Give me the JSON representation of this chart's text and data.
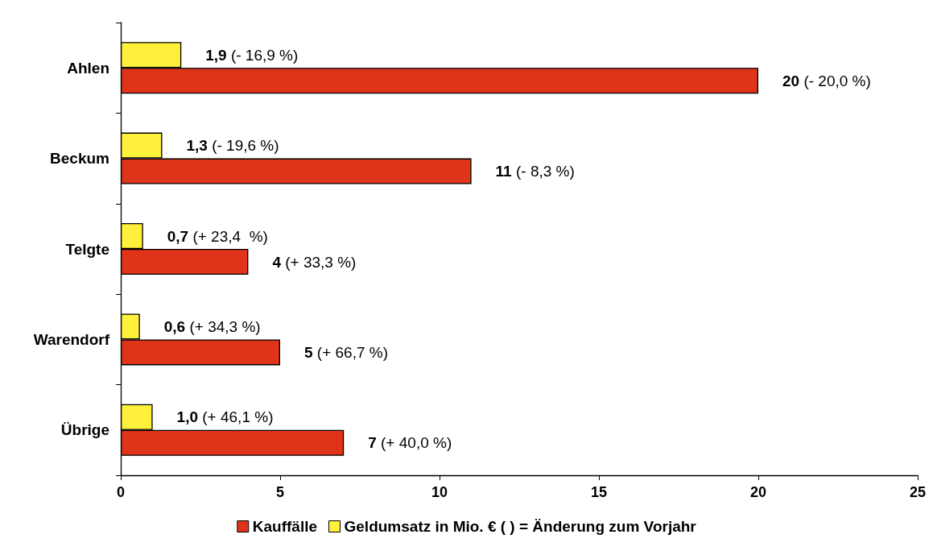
{
  "chart_data": {
    "type": "bar",
    "orientation": "horizontal",
    "categories": [
      "Ahlen",
      "Beckum",
      "Telgte",
      "Warendorf",
      "Übrige"
    ],
    "series": [
      {
        "name": "Kauffälle",
        "color": "#e0341a",
        "values": [
          20,
          11,
          4,
          5,
          7
        ],
        "value_labels": [
          "20 (- 20,0 %)",
          "11 (- 8,3 %)",
          "4 (+ 33,3 %)",
          "5 (+ 66,7 %)",
          "7 (+ 40,0 %)"
        ]
      },
      {
        "name": "Geldumsatz in Mio. € ( ) = Änderung zum Vorjahr",
        "color": "#fff03c",
        "values": [
          1.9,
          1.3,
          0.7,
          0.6,
          1.0
        ],
        "value_labels": [
          "1,9 (- 16,9 %)",
          "1,3 (- 19,6 %)",
          "0,7 (+ 23,4  %)",
          "0,6 (+ 34,3 %)",
          "1,0 (+ 46,1 %)"
        ]
      }
    ],
    "xlim": [
      0,
      25
    ],
    "xticks": [
      0,
      5,
      10,
      15,
      20,
      25
    ],
    "grid": false,
    "legend": "bottom"
  }
}
